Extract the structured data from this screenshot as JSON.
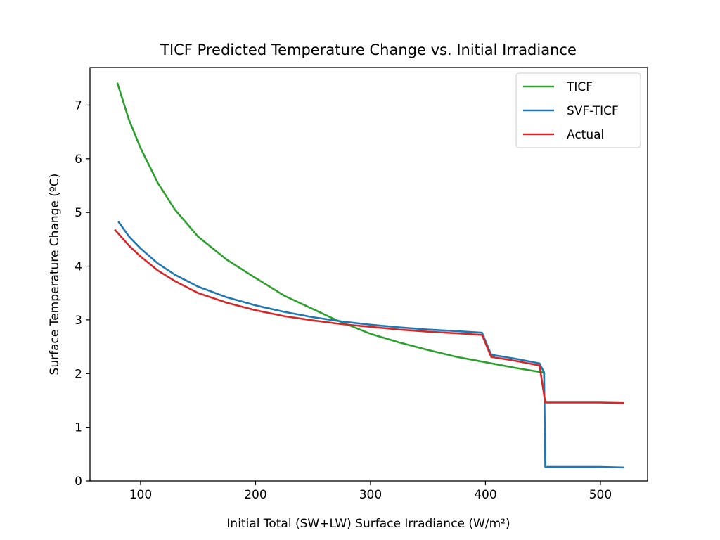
{
  "chart_data": {
    "type": "line",
    "title": "TICF Predicted Temperature Change vs. Initial Irradiance",
    "xlabel": "Initial Total (SW+LW) Surface Irradiance (W/m²)",
    "ylabel": "Surface Temperature Change (ºC)",
    "xlim": [
      56,
      541
    ],
    "ylim": [
      0,
      7.7
    ],
    "xticks": [
      100,
      200,
      300,
      400,
      500
    ],
    "xtick_labels": [
      "100",
      "200",
      "300",
      "400",
      "500"
    ],
    "yticks": [
      0,
      1,
      2,
      3,
      4,
      5,
      6,
      7
    ],
    "ytick_labels": [
      "0",
      "1",
      "2",
      "3",
      "4",
      "5",
      "6",
      "7"
    ],
    "grid": false,
    "legend_position": "top-right",
    "series": [
      {
        "name": "TICF",
        "color": "#2ca02c",
        "x": [
          80,
          90,
          100,
          115,
          130,
          150,
          175,
          200,
          225,
          250,
          270,
          300,
          325,
          350,
          375,
          400,
          425,
          450,
          451
        ],
        "y": [
          7.4,
          6.72,
          6.2,
          5.55,
          5.05,
          4.55,
          4.12,
          3.78,
          3.45,
          3.2,
          3.0,
          2.74,
          2.58,
          2.44,
          2.31,
          2.21,
          2.11,
          2.02,
          2.0
        ]
      },
      {
        "name": "SVF-TICF",
        "color": "#1f77b4",
        "x": [
          81,
          90,
          100,
          115,
          130,
          150,
          175,
          200,
          225,
          250,
          275,
          300,
          325,
          350,
          375,
          397,
          405,
          425,
          447,
          451,
          452,
          475,
          500,
          520
        ],
        "y": [
          4.82,
          4.55,
          4.33,
          4.05,
          3.84,
          3.62,
          3.42,
          3.27,
          3.15,
          3.05,
          2.97,
          2.91,
          2.86,
          2.82,
          2.79,
          2.76,
          2.35,
          2.28,
          2.19,
          2.02,
          0.26,
          0.26,
          0.26,
          0.25
        ]
      },
      {
        "name": "Actual",
        "color": "#d62728",
        "x": [
          78,
          90,
          100,
          115,
          130,
          150,
          175,
          200,
          225,
          250,
          275,
          300,
          325,
          350,
          375,
          397,
          405,
          425,
          447,
          452,
          475,
          500,
          520
        ],
        "y": [
          4.67,
          4.38,
          4.18,
          3.92,
          3.72,
          3.5,
          3.32,
          3.18,
          3.07,
          2.99,
          2.92,
          2.87,
          2.82,
          2.78,
          2.75,
          2.72,
          2.31,
          2.24,
          2.15,
          1.46,
          1.46,
          1.46,
          1.45
        ]
      }
    ]
  }
}
